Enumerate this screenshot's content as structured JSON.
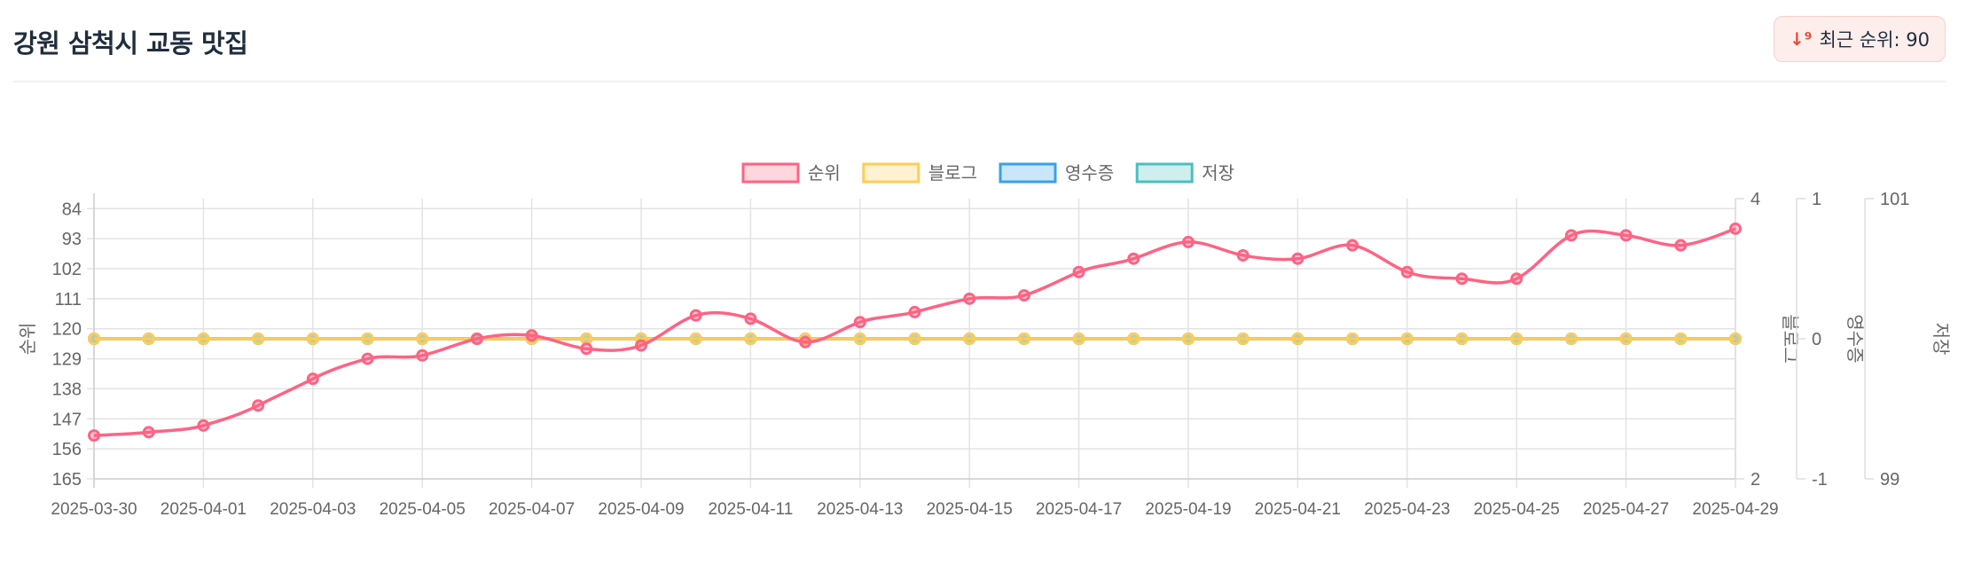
{
  "header": {
    "title": "강원 삼척시 교동 맛집",
    "badge_label": "최근 순위: 90",
    "badge_icon": "sort-numeric-down-icon"
  },
  "chart_data": {
    "type": "line",
    "x": [
      "2025-03-30",
      "2025-03-31",
      "2025-04-01",
      "2025-04-02",
      "2025-04-03",
      "2025-04-04",
      "2025-04-05",
      "2025-04-06",
      "2025-04-07",
      "2025-04-08",
      "2025-04-09",
      "2025-04-10",
      "2025-04-11",
      "2025-04-12",
      "2025-04-13",
      "2025-04-14",
      "2025-04-15",
      "2025-04-16",
      "2025-04-17",
      "2025-04-18",
      "2025-04-19",
      "2025-04-20",
      "2025-04-21",
      "2025-04-22",
      "2025-04-23",
      "2025-04-24",
      "2025-04-25",
      "2025-04-26",
      "2025-04-27",
      "2025-04-28",
      "2025-04-29"
    ],
    "series": [
      {
        "name": "순위",
        "axis": "rank",
        "color": "#ff6384",
        "values": [
          152,
          151,
          149,
          143,
          135,
          129,
          128,
          123,
          122,
          126,
          125,
          116,
          117,
          124,
          118,
          115,
          111,
          110,
          103,
          99,
          94,
          98,
          99,
          95,
          103,
          105,
          105,
          92,
          92,
          95,
          90
        ]
      },
      {
        "name": "블로그",
        "axis": "blog",
        "color": "#ffcd56",
        "values": [
          3,
          3,
          3,
          3,
          3,
          3,
          3,
          3,
          3,
          3,
          3,
          3,
          3,
          3,
          3,
          3,
          3,
          3,
          3,
          3,
          3,
          3,
          3,
          3,
          3,
          3,
          3,
          3,
          3,
          3,
          3
        ]
      },
      {
        "name": "영수증",
        "axis": "receipt",
        "color": "#36a2eb",
        "values": [
          0,
          0,
          0,
          0,
          0,
          0,
          0,
          0,
          0,
          0,
          0,
          0,
          0,
          0,
          0,
          0,
          0,
          0,
          0,
          0,
          0,
          0,
          0,
          0,
          0,
          0,
          0,
          0,
          0,
          0,
          0
        ]
      },
      {
        "name": "저장",
        "axis": "save",
        "color": "#4bc0c0",
        "values": [
          100,
          100,
          100,
          100,
          100,
          100,
          100,
          100,
          100,
          100,
          100,
          100,
          100,
          100,
          100,
          100,
          100,
          100,
          100,
          100,
          100,
          100,
          100,
          100,
          100,
          100,
          100,
          100,
          100,
          100,
          100
        ]
      }
    ],
    "axes": {
      "rank": {
        "title": "순위",
        "reverse": true,
        "range": [
          81,
          165
        ],
        "ticks": [
          "84",
          "93",
          "102",
          "111",
          "120",
          "129",
          "138",
          "147",
          "156",
          "165"
        ]
      },
      "blog": {
        "title": "블로그",
        "range": [
          2,
          4
        ],
        "ticks": [
          "4",
          "2"
        ]
      },
      "receipt": {
        "title": "영수증",
        "range": [
          -1,
          1
        ],
        "ticks": [
          "1",
          "0",
          "-1"
        ]
      },
      "save": {
        "title": "저장",
        "range": [
          99,
          101
        ],
        "ticks": [
          "101",
          "99"
        ]
      }
    },
    "x_tick_labels": [
      "2025-03-30",
      "2025-04-01",
      "2025-04-03",
      "2025-04-05",
      "2025-04-07",
      "2025-04-09",
      "2025-04-11",
      "2025-04-13",
      "2025-04-15",
      "2025-04-17",
      "2025-04-19",
      "2025-04-21",
      "2025-04-23",
      "2025-04-25",
      "2025-04-27",
      "2025-04-29"
    ],
    "legend": "top",
    "grid": true
  }
}
